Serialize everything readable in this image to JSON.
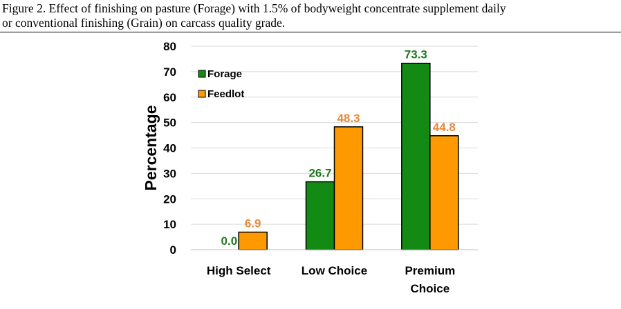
{
  "caption": {
    "line1": "Figure 2. Effect of finishing on pasture (Forage) with 1.5% of bodyweight concentrate supplement daily",
    "line2": "or conventional finishing (Grain) on carcass quality grade."
  },
  "chart_data": {
    "type": "bar",
    "categories": [
      [
        "High Select"
      ],
      [
        "Low Choice"
      ],
      [
        "Premium",
        "Choice"
      ]
    ],
    "series": [
      {
        "name": "Forage",
        "color": "#138a13",
        "label_color": "#1e7a1e",
        "values": [
          0.0,
          26.7,
          73.3
        ],
        "labels": [
          "0.0",
          "26.7",
          "73.3"
        ]
      },
      {
        "name": "Feedlot",
        "color": "#ff9900",
        "label_color": "#e6883a",
        "values": [
          6.9,
          48.3,
          44.8
        ],
        "labels": [
          "6.9",
          "48.3",
          "44.8"
        ]
      }
    ],
    "ylabel": "Percentage",
    "ylim": [
      0,
      80
    ],
    "yticks": [
      0,
      10,
      20,
      30,
      40,
      50,
      60,
      70,
      80
    ],
    "grid": true,
    "grid_color": "#d9d9d9",
    "legend_position": "top-left"
  }
}
